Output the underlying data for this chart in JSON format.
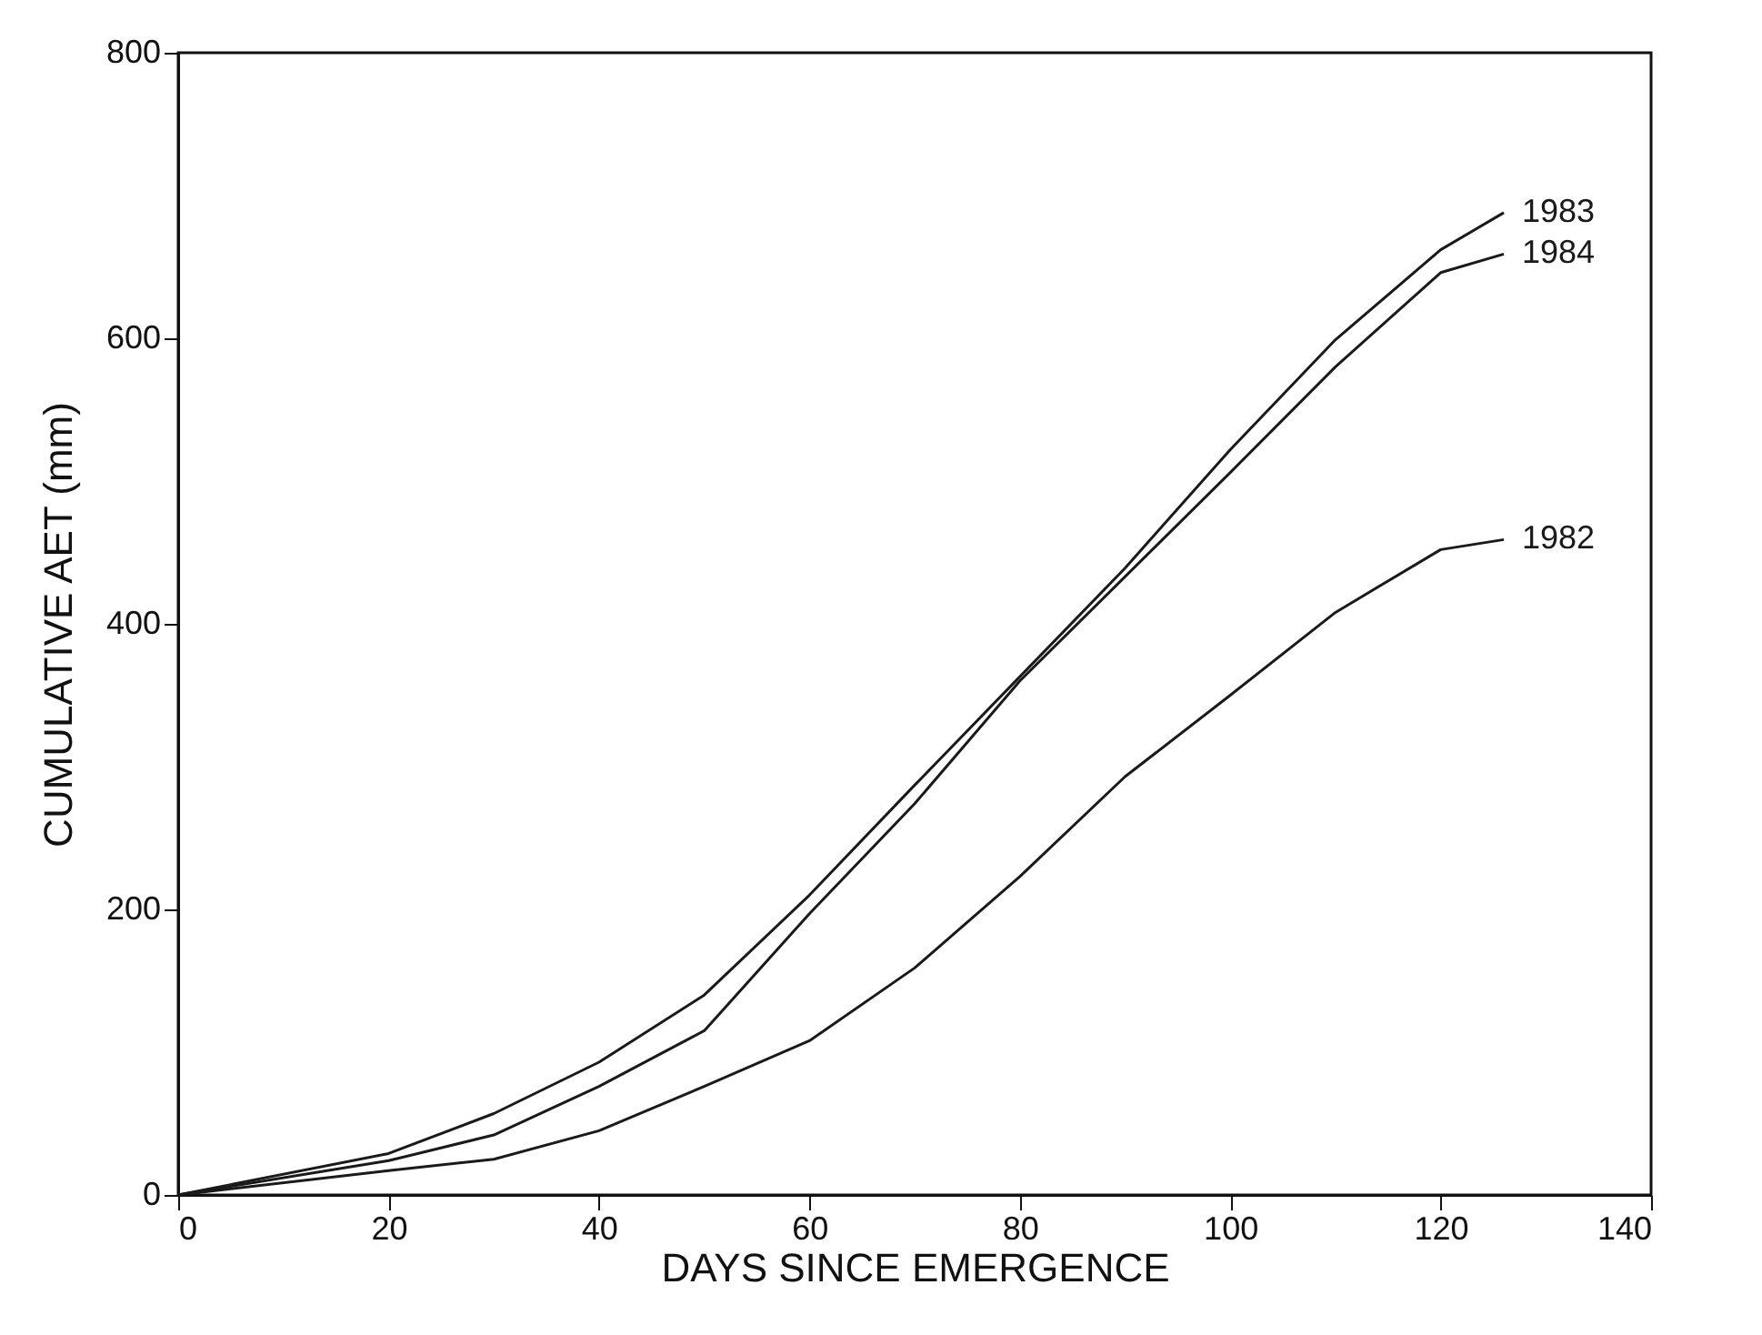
{
  "chart_data": {
    "type": "line",
    "xlabel": "DAYS SINCE EMERGENCE",
    "ylabel": "CUMULATIVE AET (mm)",
    "x": [
      0,
      20,
      30,
      40,
      50,
      60,
      70,
      80,
      90,
      100,
      110,
      120,
      126
    ],
    "xlim": [
      0,
      140
    ],
    "xticks": [
      0,
      20,
      40,
      60,
      80,
      100,
      120,
      140
    ],
    "ylim": [
      0,
      800
    ],
    "yticks": [
      0,
      200,
      400,
      600,
      800
    ],
    "grid": false,
    "legend": false,
    "line_style": "solid",
    "series": [
      {
        "name": "1983",
        "color": "#1a1a1a",
        "values": [
          0,
          29,
          57,
          93,
          140,
          210,
          287,
          363,
          439,
          522,
          599,
          662,
          688
        ]
      },
      {
        "name": "1984",
        "color": "#1a1a1a",
        "values": [
          0,
          24,
          42,
          76,
          115,
          197,
          274,
          360,
          433,
          506,
          580,
          646,
          659
        ]
      },
      {
        "name": "1982",
        "color": "#1a1a1a",
        "values": [
          0,
          17,
          25,
          45,
          76,
          108,
          159,
          223,
          293,
          350,
          408,
          452,
          459
        ]
      }
    ]
  }
}
